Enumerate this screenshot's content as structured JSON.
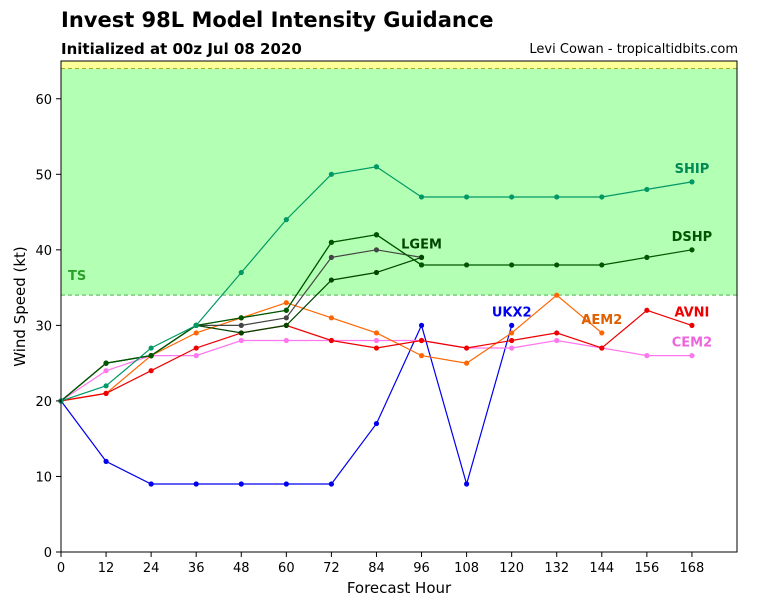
{
  "header": {
    "title": "Invest 98L Model Intensity Guidance",
    "subtitle": "Initialized at 00z Jul 08 2020",
    "credit": "Levi Cowan - tropicaltidbits.com"
  },
  "chart_data": {
    "type": "line",
    "title": "Invest 98L Model Intensity Guidance",
    "subtitle": "Initialized at 00z Jul 08 2020",
    "xlabel": "Forecast Hour",
    "ylabel": "Wind Speed (kt)",
    "xlim": [
      0,
      180
    ],
    "ylim": [
      0,
      65
    ],
    "xticks": [
      0,
      12,
      24,
      36,
      48,
      60,
      72,
      84,
      96,
      108,
      120,
      132,
      144,
      156,
      168
    ],
    "yticks": [
      0,
      10,
      20,
      30,
      40,
      50,
      60
    ],
    "bands": [
      {
        "name": "TS",
        "from": 34,
        "to": 64,
        "color": "#b3ffb3",
        "label_color": "#2ca02c"
      },
      {
        "name": "",
        "from": 64,
        "to": 65,
        "color": "#ffff99",
        "label_color": "#999900"
      }
    ],
    "series": [
      {
        "name": "UKX2",
        "color": "#0000ee",
        "label_color": "#0000ee",
        "label_at_x": 120,
        "x": [
          0,
          12,
          24,
          36,
          48,
          60,
          72,
          84,
          96,
          108,
          120
        ],
        "y": [
          20,
          12,
          9,
          9,
          9,
          9,
          9,
          17,
          30,
          9,
          30
        ]
      },
      {
        "name": "CEM2",
        "color": "#ff77ee",
        "label_color": "#ee66dd",
        "label_at_x": 168,
        "x": [
          0,
          12,
          24,
          36,
          48,
          60,
          72,
          84,
          96,
          108,
          120,
          132,
          144,
          156,
          168
        ],
        "y": [
          20,
          24,
          26,
          26,
          28,
          28,
          28,
          28,
          28,
          27,
          27,
          28,
          27,
          26,
          26
        ]
      },
      {
        "name": "AEM2",
        "color": "#ff6600",
        "label_color": "#e06000",
        "label_at_x": 144,
        "x": [
          0,
          12,
          24,
          36,
          48,
          60,
          72,
          84,
          96,
          108,
          120,
          132,
          144
        ],
        "y": [
          20,
          21,
          26,
          29,
          31,
          33,
          31,
          29,
          26,
          25,
          29,
          34,
          29
        ]
      },
      {
        "name": "AVNI",
        "color": "#ee0000",
        "label_color": "#ee0000",
        "label_at_x": 168,
        "x": [
          0,
          12,
          24,
          36,
          48,
          60,
          72,
          84,
          96,
          108,
          120,
          132,
          144,
          156,
          168
        ],
        "y": [
          20,
          21,
          24,
          27,
          29,
          30,
          28,
          27,
          28,
          27,
          28,
          29,
          27,
          32,
          30
        ]
      },
      {
        "name": "",
        "color": "#444444",
        "label_color": "#222222",
        "label_at_x": 96,
        "x": [
          0,
          12,
          24,
          36,
          48,
          60,
          72,
          84,
          96
        ],
        "y": [
          20,
          25,
          26,
          30,
          30,
          31,
          39,
          40,
          39
        ]
      },
      {
        "name": "LGEM",
        "color": "#004400",
        "label_color": "#004400",
        "label_at_x": 96,
        "x": [
          0,
          12,
          24,
          36,
          48,
          60,
          72,
          84,
          96
        ],
        "y": [
          20,
          25,
          26,
          30,
          29,
          30,
          36,
          37,
          39
        ]
      },
      {
        "name": "",
        "color": "#117711",
        "label_color": "#117711",
        "label_at_x": 96,
        "x": [
          0,
          12,
          24,
          36,
          48,
          60,
          72,
          84,
          96
        ],
        "y": [
          20,
          25,
          26,
          30,
          31,
          32,
          41,
          42,
          38
        ]
      },
      {
        "name": "DSHP",
        "color": "#005500",
        "label_color": "#005500",
        "label_at_x": 168,
        "x": [
          0,
          12,
          24,
          36,
          48,
          60,
          72,
          84,
          96,
          108,
          120,
          132,
          144,
          156,
          168
        ],
        "y": [
          20,
          25,
          26,
          30,
          31,
          32,
          41,
          42,
          38,
          38,
          38,
          38,
          38,
          39,
          40
        ]
      },
      {
        "name": "SHIP",
        "color": "#009966",
        "label_color": "#008855",
        "label_at_x": 168,
        "x": [
          0,
          12,
          24,
          36,
          48,
          60,
          72,
          84,
          96,
          108,
          120,
          132,
          144,
          156,
          168
        ],
        "y": [
          20,
          22,
          27,
          30,
          37,
          44,
          50,
          51,
          47,
          47,
          47,
          47,
          47,
          48,
          49
        ]
      }
    ]
  }
}
